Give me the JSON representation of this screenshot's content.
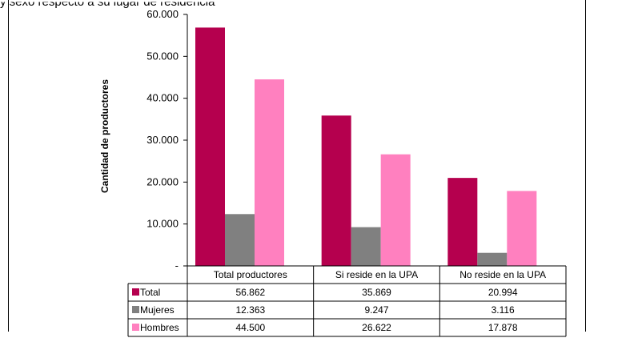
{
  "page": {
    "top_snippet": "y sexo respecto a su lugar de residencia"
  },
  "chart_data": {
    "type": "bar",
    "title": "",
    "xlabel": "",
    "ylabel": "Cantidad de productores",
    "ylim": [
      0,
      60000
    ],
    "yticks": [
      {
        "value": 0,
        "label": "-"
      },
      {
        "value": 10000,
        "label": "10.000"
      },
      {
        "value": 20000,
        "label": "20.000"
      },
      {
        "value": 30000,
        "label": "30.000"
      },
      {
        "value": 40000,
        "label": "40.000"
      },
      {
        "value": 50000,
        "label": "50.000"
      },
      {
        "value": 60000,
        "label": "60.000"
      }
    ],
    "grid": false,
    "legend": "table-below",
    "categories": [
      "Total productores",
      "Si reside en la UPA",
      "No reside en la UPA"
    ],
    "series": [
      {
        "name": "Total",
        "color": "#b5004e",
        "values": [
          56862,
          35869,
          20994
        ],
        "labels": [
          "56.862",
          "35.869",
          "20.994"
        ]
      },
      {
        "name": "Mujeres",
        "color": "#808080",
        "values": [
          12363,
          9247,
          3116
        ],
        "labels": [
          "12.363",
          "9.247",
          "3.116"
        ]
      },
      {
        "name": "Hombres",
        "color": "#ff80bf",
        "values": [
          44500,
          26622,
          17878
        ],
        "labels": [
          "44.500",
          "26.622",
          "17.878"
        ]
      }
    ]
  }
}
